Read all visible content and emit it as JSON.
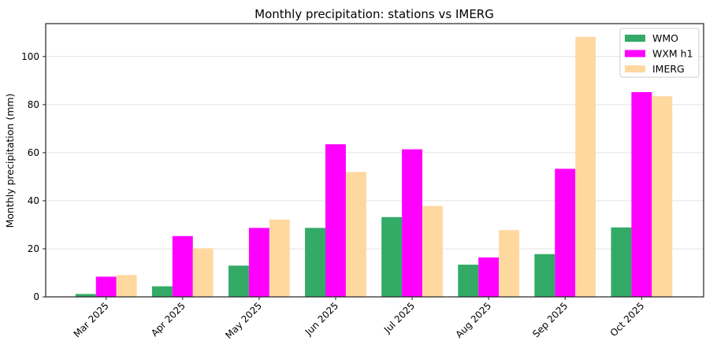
{
  "chart_data": {
    "type": "bar",
    "title": "Monthly precipitation: stations vs IMERG",
    "xlabel": "",
    "ylabel": "Monthly precipitation (mm)",
    "categories": [
      "Mar 2025",
      "Apr 2025",
      "May 2025",
      "Jun 2025",
      "Jul 2025",
      "Aug 2025",
      "Sep 2025",
      "Oct 2025"
    ],
    "series": [
      {
        "name": "WMO",
        "color": "#33aa66",
        "values": [
          1.2,
          4.4,
          13.0,
          28.7,
          33.2,
          13.4,
          17.8,
          28.9
        ]
      },
      {
        "name": "WXM h1",
        "color": "#ff00ff",
        "values": [
          8.4,
          25.3,
          28.7,
          63.5,
          61.4,
          16.4,
          53.3,
          85.2
        ]
      },
      {
        "name": "IMERG",
        "color": "#ffd8a0",
        "values": [
          9.1,
          20.2,
          32.2,
          52.0,
          37.8,
          27.8,
          108.2,
          83.5
        ]
      }
    ],
    "ylim": [
      0,
      113.7
    ],
    "yticks": [
      0,
      20,
      40,
      60,
      80,
      100
    ],
    "grid": "y",
    "legend": "top-right"
  }
}
